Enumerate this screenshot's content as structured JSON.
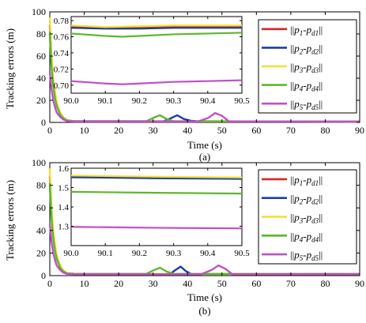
{
  "chart_data": [
    {
      "type": "line",
      "caption": "(a)",
      "xlabel": "Time (s)",
      "ylabel": "Tracking errors (m)",
      "xlim": [
        0,
        90
      ],
      "ylim": [
        0,
        100
      ],
      "xticks": [
        0,
        10,
        20,
        30,
        40,
        50,
        60,
        70,
        80,
        90
      ],
      "yticks": [
        0,
        20,
        40,
        60,
        80,
        100
      ],
      "legend_position": "right-inside",
      "series": [
        {
          "name": "||p1-pd1||",
          "legend": {
            "main": "p",
            "sub1": "1",
            "sep": "-",
            "main2": "p",
            "sub2": "d1"
          },
          "color": "#d62728",
          "x": [
            0,
            0.5,
            1,
            1.5,
            2,
            3,
            4,
            5,
            7,
            90
          ],
          "y": [
            88,
            55,
            38,
            26,
            17,
            8,
            4,
            2,
            1.0,
            0.8
          ]
        },
        {
          "name": "||p2-pd2||",
          "legend": {
            "main": "p",
            "sub1": "2",
            "sep": "-",
            "main2": "p",
            "sub2": "d2"
          },
          "color": "#1f3fa0",
          "x": [
            0,
            0.5,
            1,
            1.5,
            2,
            3,
            4,
            5,
            7,
            33,
            35,
            37,
            39,
            41,
            43,
            90
          ],
          "y": [
            80,
            52,
            35,
            24,
            16,
            8,
            4,
            2,
            1.0,
            1.0,
            3.5,
            6.5,
            3.0,
            1.5,
            1.0,
            0.8
          ]
        },
        {
          "name": "||p3-pd3||",
          "legend": {
            "main": "p",
            "sub1": "3",
            "sep": "-",
            "main2": "p",
            "sub2": "d3"
          },
          "color": "#f2e030",
          "x": [
            0,
            0.5,
            1,
            1.5,
            2,
            3,
            4,
            5,
            7,
            90
          ],
          "y": [
            95,
            60,
            40,
            28,
            18,
            9,
            4.5,
            2.2,
            1.0,
            0.8
          ]
        },
        {
          "name": "||p4-pd4||",
          "legend": {
            "main": "p",
            "sub1": "4",
            "sep": "-",
            "main2": "p",
            "sub2": "d4"
          },
          "color": "#5cb82a",
          "x": [
            0,
            0.5,
            1,
            1.5,
            2,
            3,
            4,
            5,
            7,
            28,
            30,
            32,
            34,
            36,
            90
          ],
          "y": [
            82,
            50,
            33,
            22,
            15,
            7,
            3.5,
            1.8,
            1.0,
            1.0,
            4,
            6.5,
            3,
            1.0,
            0.8
          ]
        },
        {
          "name": "||p5-pd5||",
          "legend": {
            "main": "p",
            "sub1": "5",
            "sep": "-",
            "main2": "p",
            "sub2": "d5"
          },
          "color": "#c050c8",
          "x": [
            0,
            0.5,
            1,
            1.5,
            2,
            3,
            4,
            5,
            7,
            43,
            46,
            48,
            50,
            52,
            90
          ],
          "y": [
            45,
            30,
            20,
            14,
            9,
            5,
            2.5,
            1.2,
            0.8,
            0.8,
            4,
            8.5,
            6,
            0.9,
            0.7
          ]
        }
      ],
      "inset": {
        "xlim": [
          90.0,
          90.5
        ],
        "ylim": [
          0.69,
          0.785
        ],
        "xticks": [
          90.0,
          90.1,
          90.2,
          90.3,
          90.4,
          90.5
        ],
        "yticks": [
          0.7,
          0.72,
          0.74,
          0.76,
          0.78
        ],
        "xtick_labels": [
          "90.0",
          "90.1",
          "90.2",
          "90.3",
          "90.4",
          "90.5"
        ],
        "ytick_labels": [
          "0.70",
          "0.72",
          "0.74",
          "0.76",
          "0.78"
        ],
        "series": [
          {
            "color": "#d62728",
            "x": [
              90.0,
              90.1,
              90.2,
              90.3,
              90.4,
              90.5
            ],
            "y": [
              0.772,
              0.771,
              0.771,
              0.772,
              0.772,
              0.772
            ]
          },
          {
            "color": "#1f3fa0",
            "x": [
              90.0,
              90.1,
              90.2,
              90.3,
              90.4,
              90.5
            ],
            "y": [
              0.771,
              0.77,
              0.77,
              0.771,
              0.771,
              0.771
            ]
          },
          {
            "color": "#f2e030",
            "x": [
              90.0,
              90.1,
              90.2,
              90.3,
              90.4,
              90.5
            ],
            "y": [
              0.774,
              0.772,
              0.773,
              0.774,
              0.774,
              0.774
            ]
          },
          {
            "color": "#5cb82a",
            "x": [
              90.0,
              90.1,
              90.15,
              90.2,
              90.3,
              90.4,
              90.5
            ],
            "y": [
              0.764,
              0.761,
              0.76,
              0.761,
              0.763,
              0.764,
              0.765
            ]
          },
          {
            "color": "#c050c8",
            "x": [
              90.0,
              90.1,
              90.15,
              90.2,
              90.3,
              90.4,
              90.5
            ],
            "y": [
              0.705,
              0.702,
              0.701,
              0.702,
              0.704,
              0.705,
              0.706
            ]
          }
        ]
      }
    },
    {
      "type": "line",
      "caption": "(b)",
      "xlabel": "Time (s)",
      "ylabel": "Tracking errors (m)",
      "xlim": [
        0,
        90
      ],
      "ylim": [
        0,
        100
      ],
      "xticks": [
        0,
        10,
        20,
        30,
        40,
        50,
        60,
        70,
        80,
        90
      ],
      "yticks": [
        0,
        20,
        40,
        60,
        80,
        100
      ],
      "legend_position": "right-inside",
      "series": [
        {
          "name": "||p1-pd1||",
          "legend": {
            "main": "p",
            "sub1": "1",
            "sep": "-",
            "main2": "p",
            "sub2": "d1"
          },
          "color": "#d62728",
          "x": [
            0,
            0.5,
            1,
            1.5,
            2,
            3,
            4,
            5,
            7,
            90
          ],
          "y": [
            88,
            55,
            38,
            26,
            17,
            8,
            4,
            2.2,
            1.6,
            1.55
          ]
        },
        {
          "name": "||p2-pd2||",
          "legend": {
            "main": "p",
            "sub1": "2",
            "sep": "-",
            "main2": "p",
            "sub2": "d2"
          },
          "color": "#1f3fa0",
          "x": [
            0,
            0.5,
            1,
            1.5,
            2,
            3,
            4,
            5,
            7,
            35,
            36.5,
            38,
            39.5,
            41,
            90
          ],
          "y": [
            80,
            52,
            35,
            24,
            16,
            8,
            4,
            2.2,
            1.6,
            1.6,
            5,
            8,
            4,
            1.6,
            1.55
          ]
        },
        {
          "name": "||p3-pd3||",
          "legend": {
            "main": "p",
            "sub1": "3",
            "sep": "-",
            "main2": "p",
            "sub2": "d3"
          },
          "color": "#f2e030",
          "x": [
            0,
            0.5,
            1,
            1.5,
            2,
            3,
            4,
            5,
            7,
            90
          ],
          "y": [
            95,
            60,
            40,
            28,
            18,
            9,
            4.5,
            2.4,
            1.6,
            1.55
          ]
        },
        {
          "name": "||p4-pd4||",
          "legend": {
            "main": "p",
            "sub1": "4",
            "sep": "-",
            "main2": "p",
            "sub2": "d4"
          },
          "color": "#5cb82a",
          "x": [
            0,
            0.5,
            1,
            1.5,
            2,
            3,
            4,
            5,
            7,
            28,
            30,
            32,
            34,
            36,
            90
          ],
          "y": [
            82,
            50,
            33,
            22,
            15,
            7,
            3.5,
            2,
            1.5,
            1.5,
            4.5,
            7,
            3.5,
            1.5,
            1.47
          ]
        },
        {
          "name": "||p5-pd5||",
          "legend": {
            "main": "p",
            "sub1": "5",
            "sep": "-",
            "main2": "p",
            "sub2": "d5"
          },
          "color": "#c050c8",
          "x": [
            0,
            0.5,
            1,
            1.5,
            2,
            3,
            4,
            5,
            7,
            44,
            47,
            49,
            51,
            53,
            90
          ],
          "y": [
            45,
            30,
            20,
            14,
            9,
            5,
            2.5,
            1.5,
            1.3,
            1.3,
            5,
            9,
            6,
            1.3,
            1.29
          ]
        }
      ],
      "inset": {
        "xlim": [
          90.0,
          90.5
        ],
        "ylim": [
          1.2,
          1.6
        ],
        "xticks": [
          90.0,
          90.1,
          90.2,
          90.3,
          90.4,
          90.5
        ],
        "yticks": [
          1.3,
          1.4,
          1.5,
          1.6
        ],
        "xtick_labels": [
          "90.0",
          "90.1",
          "90.2",
          "90.3",
          "90.4",
          "90.5"
        ],
        "ytick_labels": [
          "1.3",
          "1.4",
          "1.5",
          "1.6"
        ],
        "series": [
          {
            "color": "#d62728",
            "x": [
              90.0,
              90.25,
              90.5
            ],
            "y": [
              1.555,
              1.55,
              1.548
            ]
          },
          {
            "color": "#1f3fa0",
            "x": [
              90.0,
              90.25,
              90.5
            ],
            "y": [
              1.553,
              1.548,
              1.545
            ]
          },
          {
            "color": "#f2e030",
            "x": [
              90.0,
              90.25,
              90.5
            ],
            "y": [
              1.562,
              1.556,
              1.552
            ]
          },
          {
            "color": "#5cb82a",
            "x": [
              90.0,
              90.25,
              90.5
            ],
            "y": [
              1.478,
              1.473,
              1.469
            ]
          },
          {
            "color": "#c050c8",
            "x": [
              90.0,
              90.25,
              90.5
            ],
            "y": [
              1.297,
              1.292,
              1.289
            ]
          }
        ]
      }
    }
  ]
}
